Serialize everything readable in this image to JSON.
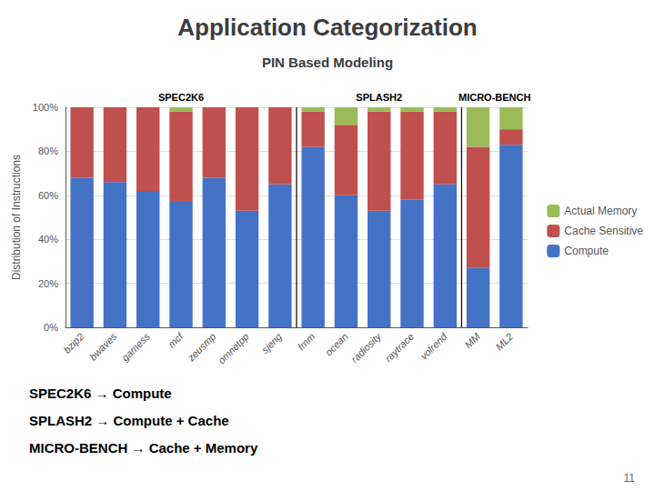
{
  "chart_data": {
    "type": "bar",
    "title": "Application Categorization",
    "subtitle": "PIN Based Modeling",
    "ylabel": "Distribution of Instructions",
    "categories": [
      "bzip2",
      "bwaves",
      "gamess",
      "mcf",
      "zeusmp",
      "omnetpp",
      "sjeng",
      "fmm",
      "ocean",
      "radiosity",
      "raytrace",
      "volrend",
      "MM",
      "ML2"
    ],
    "series": [
      {
        "name": "Compute",
        "color": "#4472c4",
        "values": [
          68,
          66,
          62,
          57,
          68,
          53,
          65,
          82,
          60,
          53,
          58,
          65,
          27,
          83
        ]
      },
      {
        "name": "Cache Sensitive",
        "color": "#c0504d",
        "values": [
          32,
          34,
          38,
          41,
          32,
          47,
          35,
          16,
          32,
          45,
          40,
          33,
          55,
          7
        ]
      },
      {
        "name": "Actual Memory",
        "color": "#9bbb59",
        "values": [
          0,
          0,
          0,
          2,
          0,
          0,
          0,
          2,
          8,
          2,
          2,
          2,
          18,
          10
        ]
      }
    ],
    "stacked": true,
    "ylim": [
      0,
      100
    ],
    "yticks": [
      {
        "value": 0,
        "label": "0%"
      },
      {
        "value": 20,
        "label": "20%"
      },
      {
        "value": 40,
        "label": "40%"
      },
      {
        "value": 60,
        "label": "60%"
      },
      {
        "value": 80,
        "label": "80%"
      },
      {
        "value": 100,
        "label": "100%"
      }
    ],
    "grid": true,
    "legend": "right",
    "annotations": [
      {
        "text": "SPEC2K6",
        "x": [
          "bzip2",
          "sjeng"
        ]
      },
      {
        "text": "SPLASH2",
        "x": [
          "fmm",
          "volrend"
        ]
      },
      {
        "text": "MICRO-BENCH",
        "x": [
          "MM",
          "ML2"
        ]
      },
      {
        "text": "SPEC2K6 → Compute"
      },
      {
        "text": "SPLASH2 → Compute + Cache"
      },
      {
        "text": "MICRO-BENCH → Cache + Memory"
      },
      {
        "text": "11"
      }
    ]
  }
}
